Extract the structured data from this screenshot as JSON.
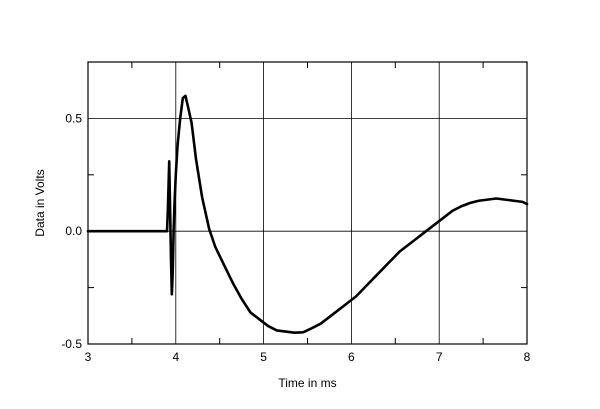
{
  "chart_data": {
    "type": "line",
    "xlabel": "Time in ms",
    "ylabel": "Data in Volts",
    "xlim": [
      3,
      8
    ],
    "ylim": [
      -0.5,
      0.75
    ],
    "x_ticks": [
      "3",
      "4",
      "5",
      "6",
      "7",
      "8"
    ],
    "y_ticks": [
      "0.5",
      "0.0",
      "-0.5"
    ],
    "grid": true,
    "series": [
      {
        "x": [
          3.0,
          3.5,
          3.9,
          3.91,
          3.925,
          3.935,
          3.945,
          3.955,
          3.965,
          3.975,
          3.985,
          4.0,
          4.02,
          4.05,
          4.08,
          4.11,
          4.14,
          4.18,
          4.23,
          4.3,
          4.38,
          4.45,
          4.55,
          4.65,
          4.75,
          4.85,
          4.95,
          5.05,
          5.15,
          5.25,
          5.35,
          5.45,
          5.55,
          5.65,
          5.75,
          5.85,
          5.95,
          6.05,
          6.15,
          6.25,
          6.35,
          6.45,
          6.55,
          6.65,
          6.75,
          6.85,
          6.95,
          7.05,
          7.15,
          7.25,
          7.35,
          7.45,
          7.55,
          7.65,
          7.75,
          7.85,
          7.95,
          8.0
        ],
        "y": [
          0.0,
          0.0,
          0.0,
          0.1,
          0.31,
          0.1,
          -0.12,
          -0.28,
          -0.18,
          0.0,
          0.12,
          0.25,
          0.38,
          0.5,
          0.59,
          0.6,
          0.55,
          0.48,
          0.32,
          0.15,
          0.01,
          -0.07,
          -0.15,
          -0.23,
          -0.3,
          -0.36,
          -0.39,
          -0.42,
          -0.44,
          -0.445,
          -0.45,
          -0.448,
          -0.43,
          -0.41,
          -0.38,
          -0.35,
          -0.32,
          -0.29,
          -0.25,
          -0.21,
          -0.17,
          -0.13,
          -0.09,
          -0.06,
          -0.03,
          0.0,
          0.03,
          0.06,
          0.09,
          0.11,
          0.125,
          0.135,
          0.14,
          0.145,
          0.14,
          0.135,
          0.13,
          0.12
        ]
      }
    ]
  }
}
